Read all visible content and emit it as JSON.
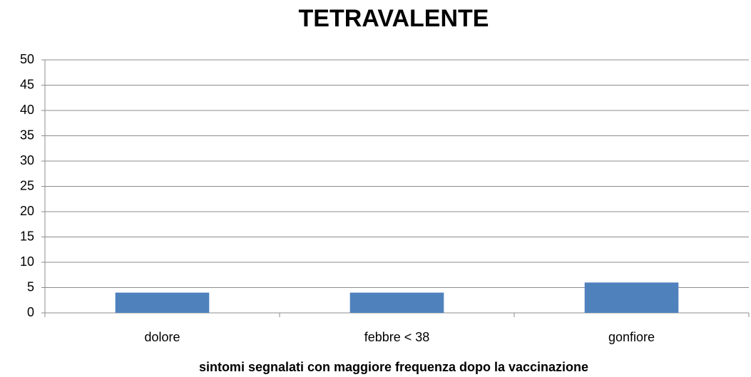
{
  "chart_data": {
    "type": "bar",
    "title": "TETRAVALENTE",
    "x_label": "sintomi segnalati con maggiore frequenza dopo la vaccinazione",
    "categories": [
      "dolore",
      "febbre < 38",
      "gonfiore"
    ],
    "values": [
      4,
      4,
      6
    ],
    "color": "#4f81bd",
    "ylim": [
      0,
      50
    ],
    "yticks": [
      0,
      5,
      10,
      15,
      20,
      25,
      30,
      35,
      40,
      45,
      50
    ],
    "grid": true
  }
}
